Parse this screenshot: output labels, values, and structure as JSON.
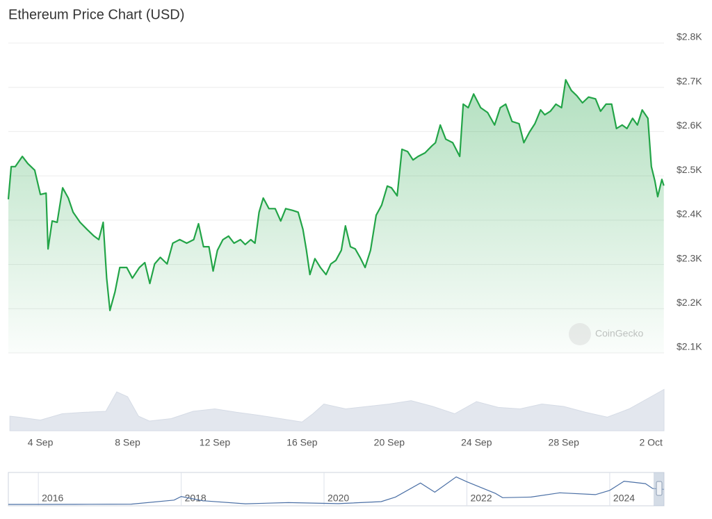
{
  "chart_data": {
    "type": "line",
    "title": "Ethereum Price Chart (USD)",
    "watermark": "CoinGecko",
    "color": "#22a447",
    "x": [
      2.53,
      2.66,
      2.85,
      3.17,
      3.42,
      3.74,
      4.0,
      4.26,
      4.35,
      4.54,
      4.77,
      5.02,
      5.28,
      5.5,
      5.82,
      6.14,
      6.46,
      6.68,
      6.88,
      7.04,
      7.19,
      7.42,
      7.64,
      7.96,
      8.22,
      8.54,
      8.79,
      9.02,
      9.24,
      9.5,
      9.81,
      10.07,
      10.39,
      10.71,
      11.03,
      11.25,
      11.48,
      11.73,
      11.92,
      12.12,
      12.37,
      12.63,
      12.88,
      13.17,
      13.39,
      13.65,
      13.84,
      14.03,
      14.22,
      14.48,
      14.77,
      15.02,
      15.25,
      15.57,
      15.82,
      16.04,
      16.2,
      16.36,
      16.59,
      16.84,
      17.1,
      17.32,
      17.55,
      17.8,
      17.99,
      18.22,
      18.44,
      18.66,
      18.89,
      19.14,
      19.4,
      19.65,
      19.91,
      20.1,
      20.36,
      20.58,
      20.84,
      21.09,
      21.32,
      21.64,
      21.96,
      22.12,
      22.34,
      22.59,
      22.91,
      23.23,
      23.39,
      23.62,
      23.87,
      24.19,
      24.51,
      24.83,
      25.09,
      25.34,
      25.63,
      25.95,
      26.17,
      26.43,
      26.68,
      26.94,
      27.13,
      27.39,
      27.64,
      27.9,
      28.09,
      28.35,
      28.6,
      28.86,
      29.14,
      29.46,
      29.69,
      29.94,
      30.2,
      30.42,
      30.68,
      30.9,
      31.16,
      31.38,
      31.6,
      31.86,
      32.02,
      32.18,
      32.31,
      32.5,
      32.59
    ],
    "values": [
      2447,
      2521,
      2521,
      2544,
      2528,
      2513,
      2458,
      2461,
      2335,
      2398,
      2395,
      2473,
      2450,
      2418,
      2395,
      2379,
      2364,
      2356,
      2395,
      2269,
      2196,
      2238,
      2293,
      2293,
      2269,
      2293,
      2304,
      2257,
      2301,
      2316,
      2301,
      2348,
      2356,
      2348,
      2356,
      2392,
      2340,
      2340,
      2285,
      2332,
      2356,
      2364,
      2348,
      2356,
      2345,
      2356,
      2348,
      2418,
      2450,
      2426,
      2426,
      2398,
      2426,
      2422,
      2418,
      2379,
      2332,
      2277,
      2313,
      2293,
      2277,
      2301,
      2309,
      2332,
      2387,
      2340,
      2335,
      2316,
      2293,
      2332,
      2411,
      2434,
      2477,
      2473,
      2455,
      2560,
      2555,
      2536,
      2544,
      2552,
      2568,
      2575,
      2615,
      2583,
      2575,
      2544,
      2662,
      2654,
      2685,
      2654,
      2643,
      2615,
      2654,
      2662,
      2623,
      2618,
      2575,
      2599,
      2618,
      2649,
      2638,
      2646,
      2662,
      2654,
      2717,
      2693,
      2681,
      2665,
      2678,
      2674,
      2646,
      2662,
      2662,
      2607,
      2615,
      2607,
      2630,
      2615,
      2649,
      2630,
      2521,
      2489,
      2453,
      2492,
      2478
    ],
    "xlim": [
      2.53,
      32.6
    ],
    "xticks": [
      {
        "value": 4,
        "label": "4 Sep"
      },
      {
        "value": 8,
        "label": "8 Sep"
      },
      {
        "value": 12,
        "label": "12 Sep"
      },
      {
        "value": 16,
        "label": "16 Sep"
      },
      {
        "value": 20,
        "label": "20 Sep"
      },
      {
        "value": 24,
        "label": "24 Sep"
      },
      {
        "value": 28,
        "label": "28 Sep"
      },
      {
        "value": 32,
        "label": "2 Oct"
      }
    ],
    "ylim": [
      2100,
      2800
    ],
    "yticks": [
      {
        "value": 2800,
        "label": "$2.8K"
      },
      {
        "value": 2700,
        "label": "$2.7K"
      },
      {
        "value": 2600,
        "label": "$2.6K"
      },
      {
        "value": 2500,
        "label": "$2.5K"
      },
      {
        "value": 2400,
        "label": "$2.4K"
      },
      {
        "value": 2300,
        "label": "$2.3K"
      },
      {
        "value": 2200,
        "label": "$2.2K"
      },
      {
        "value": 2100,
        "label": "$2.1K"
      }
    ],
    "grid": true,
    "volume": {
      "color": "#e3e7ee",
      "x": [
        2.6,
        3,
        4,
        5,
        6,
        7,
        7.5,
        8,
        8.5,
        9,
        10,
        11,
        12,
        13,
        14,
        15,
        16,
        16.5,
        17,
        18,
        19,
        20,
        21,
        22,
        23,
        24,
        25,
        26,
        27,
        28,
        29,
        30,
        31,
        32,
        32.6
      ],
      "values": [
        30,
        28,
        22,
        35,
        38,
        40,
        80,
        70,
        30,
        20,
        25,
        40,
        45,
        38,
        32,
        25,
        18,
        35,
        55,
        45,
        50,
        55,
        62,
        50,
        35,
        60,
        48,
        45,
        55,
        50,
        38,
        28,
        45,
        70,
        85
      ],
      "ylim": [
        0,
        100
      ]
    },
    "navigator": {
      "color": "#4a6fa5",
      "x": [
        2015.58,
        2016.5,
        2017.3,
        2017.9,
        2018.0,
        2018.3,
        2018.9,
        2019.5,
        2020.2,
        2020.8,
        2021.0,
        2021.35,
        2021.55,
        2021.85,
        2022.0,
        2022.4,
        2022.5,
        2022.9,
        2023.3,
        2023.8,
        2024.0,
        2024.2,
        2024.5,
        2024.6,
        2024.76
      ],
      "values": [
        1,
        10,
        50,
        700,
        1300,
        600,
        100,
        300,
        130,
        450,
        1200,
        3500,
        2000,
        4500,
        3700,
        1800,
        1100,
        1200,
        1900,
        1600,
        2300,
        3800,
        3400,
        2600,
        2450
      ],
      "xlim": [
        2015.58,
        2024.76
      ],
      "ylim": [
        0,
        5000
      ],
      "xticks": [
        2016,
        2018,
        2020,
        2022,
        2024
      ]
    }
  }
}
